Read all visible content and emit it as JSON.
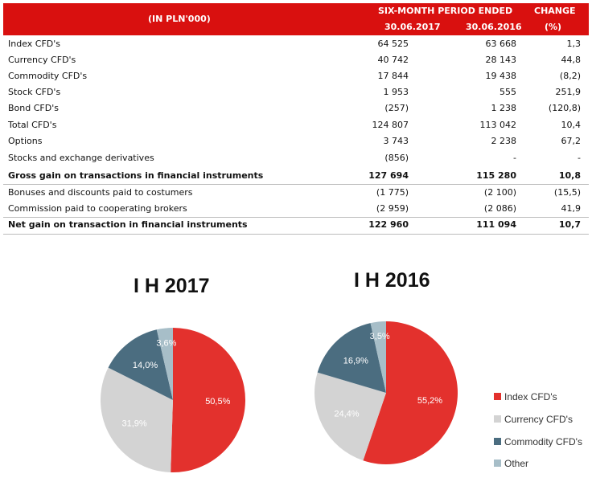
{
  "table": {
    "header": {
      "unit": "(IN PLN'000)",
      "period": "SIX-MONTH PERIOD ENDED",
      "col1": "30.06.2017",
      "col2": "30.06.2016",
      "change": "CHANGE",
      "change_unit": "(%)"
    },
    "rows": [
      {
        "label": "Index CFD's",
        "v2017": "64 525",
        "v2016": "63 668",
        "change": "1,3",
        "bold": false
      },
      {
        "label": "Currency CFD's",
        "v2017": "40 742",
        "v2016": "28 143",
        "change": "44,8",
        "bold": false
      },
      {
        "label": "Commodity CFD's",
        "v2017": "17 844",
        "v2016": "19 438",
        "change": "(8,2)",
        "bold": false
      },
      {
        "label": "Stock CFD's",
        "v2017": "1 953",
        "v2016": "555",
        "change": "251,9",
        "bold": false
      },
      {
        "label": "Bond CFD's",
        "v2017": "(257)",
        "v2016": "1 238",
        "change": "(120,8)",
        "bold": false
      },
      {
        "label": "Total CFD's",
        "v2017": "124 807",
        "v2016": "113 042",
        "change": "10,4",
        "bold": false
      },
      {
        "label": "Options",
        "v2017": "3 743",
        "v2016": "2 238",
        "change": "67,2",
        "bold": false
      },
      {
        "label": "Stocks and exchange derivatives",
        "v2017": "(856)",
        "v2016": "-",
        "change": "-",
        "bold": false
      },
      {
        "label": "Gross gain on transactions in financial instruments",
        "v2017": "127 694",
        "v2016": "115 280",
        "change": "10,8",
        "bold": true
      },
      {
        "label": "Bonuses and discounts paid to costumers",
        "v2017": "(1 775)",
        "v2016": "(2 100)",
        "change": "(15,5)",
        "bold": false
      },
      {
        "label": "Commission paid to cooperating brokers",
        "v2017": "(2 959)",
        "v2016": "(2 086)",
        "change": "41,9",
        "bold": false
      },
      {
        "label": "Net gain on transaction in financial instruments",
        "v2017": "122 960",
        "v2016": "111 094",
        "change": "10,7",
        "bold": true
      }
    ]
  },
  "chart_data": [
    {
      "type": "pie",
      "title": "I H 2017",
      "categories": [
        "Index CFD's",
        "Currency CFD's",
        "Commodity CFD's",
        "Other"
      ],
      "values": [
        50.5,
        31.9,
        14.0,
        3.6
      ],
      "labels": [
        "50,5%",
        "31,9%",
        "14,0%",
        "3,6%"
      ]
    },
    {
      "type": "pie",
      "title": "I H 2016",
      "categories": [
        "Index CFD's",
        "Currency CFD's",
        "Commodity CFD's",
        "Other"
      ],
      "values": [
        55.2,
        24.4,
        16.9,
        3.5
      ],
      "labels": [
        "55,2%",
        "24,4%",
        "16,9%",
        "3,5%"
      ],
      "legend": "right"
    }
  ],
  "legend": {
    "items": [
      "Index CFD's",
      "Currency CFD's",
      "Commodity CFD's",
      "Other"
    ],
    "colors": [
      "#e3312d",
      "#d3d3d3",
      "#4b6d80",
      "#a7bec8"
    ]
  }
}
